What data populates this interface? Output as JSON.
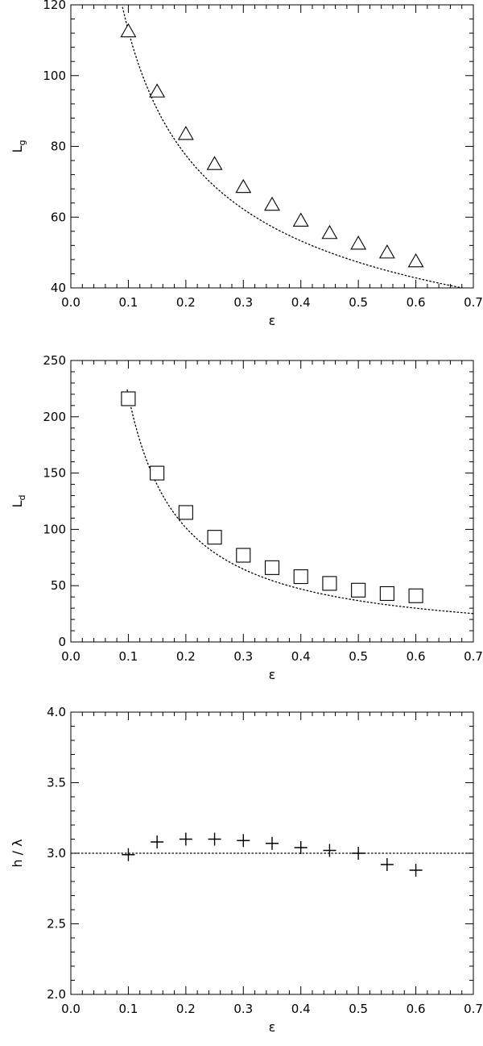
{
  "chart_data": [
    {
      "type": "scatter",
      "xlabel": "ε",
      "ylabel_main": "L",
      "ylabel_sub": "g",
      "xlim": [
        0.0,
        0.7
      ],
      "ylim": [
        40,
        120
      ],
      "x_ticks": [
        "0.0",
        "0.1",
        "0.2",
        "0.3",
        "0.4",
        "0.5",
        "0.6",
        "0.7"
      ],
      "y_ticks": [
        "40",
        "60",
        "80",
        "100",
        "120"
      ],
      "marker": "triangle",
      "x": [
        0.1,
        0.15,
        0.2,
        0.25,
        0.3,
        0.35,
        0.4,
        0.45,
        0.5,
        0.55,
        0.6
      ],
      "y": [
        112.5,
        95.5,
        83.5,
        75.0,
        68.5,
        63.5,
        59.0,
        55.5,
        52.5,
        50.0,
        47.5
      ],
      "fit": {
        "style": "dotted",
        "form": "power",
        "a": 32.5,
        "b": 0.54,
        "x_from": 0.09,
        "x_to": 0.7
      }
    },
    {
      "type": "scatter",
      "xlabel": "ε",
      "ylabel_main": "L",
      "ylabel_sub": "d",
      "xlim": [
        0.0,
        0.7
      ],
      "ylim": [
        0,
        250
      ],
      "x_ticks": [
        "0.0",
        "0.1",
        "0.2",
        "0.3",
        "0.4",
        "0.5",
        "0.6",
        "0.7"
      ],
      "y_ticks": [
        "0",
        "50",
        "100",
        "150",
        "200",
        "250"
      ],
      "marker": "square",
      "x": [
        0.1,
        0.15,
        0.2,
        0.25,
        0.3,
        0.35,
        0.4,
        0.45,
        0.5,
        0.55,
        0.6
      ],
      "y": [
        216,
        150,
        115,
        93,
        77,
        66,
        58,
        52,
        46,
        43,
        41
      ],
      "fit": {
        "style": "dotted",
        "form": "power",
        "a": 17.0,
        "b": 1.11,
        "x_from": 0.098,
        "x_to": 0.7
      }
    },
    {
      "type": "scatter",
      "xlabel": "ε",
      "ylabel_main": "h / λ",
      "ylabel_sub": "",
      "xlim": [
        0.0,
        0.7
      ],
      "ylim": [
        2.0,
        4.0
      ],
      "x_ticks": [
        "0.0",
        "0.1",
        "0.2",
        "0.3",
        "0.4",
        "0.5",
        "0.6",
        "0.7"
      ],
      "y_ticks": [
        "2.0",
        "2.5",
        "3.0",
        "3.5",
        "4.0"
      ],
      "marker": "plus",
      "x": [
        0.1,
        0.15,
        0.2,
        0.25,
        0.3,
        0.35,
        0.4,
        0.45,
        0.5,
        0.55,
        0.6
      ],
      "y": [
        2.99,
        3.08,
        3.1,
        3.1,
        3.09,
        3.07,
        3.04,
        3.02,
        3.0,
        2.92,
        2.88
      ],
      "fit": {
        "style": "dotted",
        "form": "constant",
        "value": 3.0,
        "x_from": 0.0,
        "x_to": 0.7
      }
    }
  ]
}
